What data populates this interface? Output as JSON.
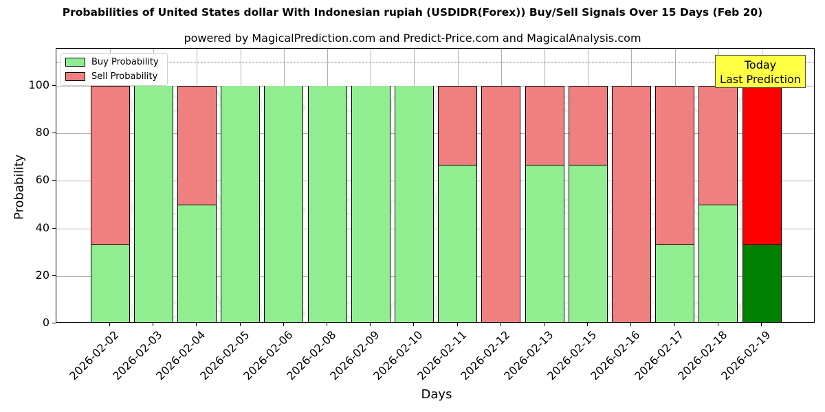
{
  "chart_data": {
    "type": "bar",
    "stacked": true,
    "title": "Probabilities of United States dollar With Indonesian rupiah (USDIDR(Forex)) Buy/Sell Signals Over 15 Days (Feb 20)",
    "subtitle": "powered by MagicalPrediction.com and Predict-Price.com and MagicalAnalysis.com",
    "xlabel": "Days",
    "ylabel": "Probability",
    "ylim": [
      0,
      115
    ],
    "yticks": [
      0,
      20,
      40,
      60,
      80,
      100
    ],
    "grid": true,
    "legend_position": "upper left",
    "reference_line": {
      "y": 110,
      "style": "dashed",
      "color": "#808080"
    },
    "categories": [
      "2026-02-02",
      "2026-02-03",
      "2026-02-04",
      "2026-02-05",
      "2026-02-06",
      "2026-02-08",
      "2026-02-09",
      "2026-02-10",
      "2026-02-11",
      "2026-02-12",
      "2026-02-13",
      "2026-02-15",
      "2026-02-16",
      "2026-02-17",
      "2026-02-18",
      "2026-02-19"
    ],
    "series": [
      {
        "name": "Buy Probability",
        "color": "#90ee90",
        "values": [
          33.3,
          100,
          50,
          100,
          100,
          100,
          100,
          100,
          66.7,
          0,
          66.7,
          66.7,
          0,
          33.3,
          50,
          33.3
        ]
      },
      {
        "name": "Sell Probability",
        "color": "#f08080",
        "values": [
          66.7,
          0,
          50,
          0,
          0,
          0,
          0,
          0,
          33.3,
          100,
          33.3,
          33.3,
          100,
          66.7,
          50,
          66.7
        ]
      }
    ],
    "highlight": {
      "index": 15,
      "buy_color": "#008000",
      "sell_color": "#ff0000",
      "annotation": "Today\nLast Prediction"
    }
  },
  "legend": {
    "buy": "Buy Probability",
    "sell": "Sell Probability"
  },
  "annotation": {
    "line1": "Today",
    "line2": "Last Prediction"
  },
  "watermarks": [
    "MagicalAnalysis.com",
    "MagicalPrediction.com"
  ]
}
